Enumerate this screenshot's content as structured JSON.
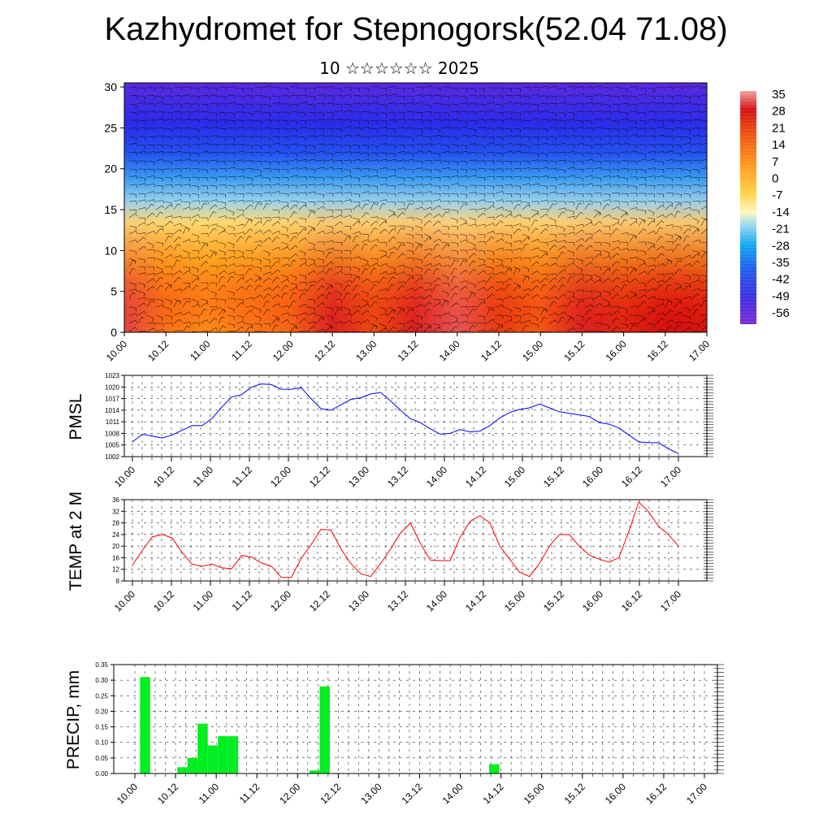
{
  "title": "Kazhydromet for Stepnogorsk(52.04 71.08)",
  "subtitle": "10 ☆☆☆☆☆☆ 2025",
  "colors": {
    "pmsl_line": "#0000ff",
    "temp_line": "#ff0000",
    "precip_bar": "#00ee22",
    "barb": "#000000"
  },
  "chart_data": [
    {
      "id": "cross_section",
      "type": "heatmap",
      "title": "",
      "xlabel": "",
      "ylabel": "",
      "x_ticklabels": [
        "10.00",
        "10.12",
        "11.00",
        "11.12",
        "12.00",
        "12.12",
        "13.00",
        "13.12",
        "14.00",
        "14.12",
        "15.00",
        "15.12",
        "16.00",
        "16.12",
        "17.00"
      ],
      "y_ticks": [
        0,
        5,
        10,
        15,
        20,
        25,
        30
      ],
      "ylim": [
        0,
        30.5
      ],
      "colorbar_labels": [
        "35",
        "28",
        "21",
        "14",
        "7",
        "0",
        "-7",
        "-14",
        "-21",
        "-28",
        "-35",
        "-42",
        "-49",
        "-56"
      ],
      "colorbar_range": [
        -60,
        38
      ],
      "surface_temp_by_x_tick": [
        33,
        16,
        12,
        15,
        18,
        31,
        22,
        31,
        34,
        24,
        20,
        31,
        27,
        30,
        29
      ],
      "overlay": "wind barbs"
    },
    {
      "id": "pmsl",
      "type": "line",
      "ylabel": "PMSL",
      "ylim": [
        1002,
        1023
      ],
      "y_ticks": [
        1002,
        1005,
        1008,
        1011,
        1014,
        1017,
        1020,
        1023
      ],
      "x_ticklabels": [
        "10.00",
        "10.12",
        "11.00",
        "11.12",
        "12.00",
        "12.12",
        "13.00",
        "13.12",
        "14.00",
        "14.12",
        "15.00",
        "15.12",
        "16.00",
        "16.12",
        "17.00"
      ],
      "x": [
        0,
        3,
        6,
        9,
        12,
        15,
        18,
        21,
        24,
        27,
        30,
        33,
        36,
        39,
        42,
        45,
        48,
        51,
        54,
        57,
        60,
        63,
        66,
        69,
        72,
        75,
        78,
        81,
        84,
        87,
        90,
        93,
        96,
        99,
        102,
        105,
        108,
        111,
        114,
        117,
        120,
        123,
        126,
        129,
        132,
        135,
        138,
        141,
        144,
        147,
        150,
        153,
        156,
        159,
        162,
        165
      ],
      "values": [
        1005.8,
        1007.8,
        1007.3,
        1006.8,
        1007.6,
        1008.8,
        1010.0,
        1010.0,
        1011.8,
        1014.8,
        1017.4,
        1018.0,
        1020.0,
        1020.8,
        1020.6,
        1019.4,
        1019.4,
        1019.8,
        1017.0,
        1014.4,
        1014.0,
        1015.4,
        1016.8,
        1017.2,
        1018.2,
        1018.6,
        1016.4,
        1014.0,
        1011.8,
        1010.8,
        1009.2,
        1007.8,
        1008.0,
        1009.0,
        1008.4,
        1008.6,
        1010.0,
        1012.0,
        1013.4,
        1014.2,
        1014.6,
        1015.6,
        1014.6,
        1013.6,
        1013.2,
        1012.8,
        1012.4,
        1010.8,
        1010.4,
        1009.4,
        1007.6,
        1005.8,
        1005.6,
        1005.6,
        1004.0,
        1002.8
      ]
    },
    {
      "id": "temp2m",
      "type": "line",
      "ylabel": "TEMP at 2 M",
      "ylim": [
        8,
        36
      ],
      "y_ticks": [
        8,
        12,
        16,
        20,
        24,
        28,
        32,
        36
      ],
      "x_ticklabels": [
        "10.00",
        "10.12",
        "11.00",
        "11.12",
        "12.00",
        "12.12",
        "13.00",
        "13.12",
        "14.00",
        "14.12",
        "15.00",
        "15.12",
        "16.00",
        "16.12",
        "17.00"
      ],
      "x": [
        0,
        3,
        6,
        9,
        12,
        15,
        18,
        21,
        24,
        27,
        30,
        33,
        36,
        39,
        42,
        45,
        48,
        51,
        54,
        57,
        60,
        63,
        66,
        69,
        72,
        75,
        78,
        81,
        84,
        87,
        90,
        93,
        96,
        99,
        102,
        105,
        108,
        111,
        114,
        117,
        120,
        123,
        126,
        129,
        132,
        135,
        138,
        141,
        144,
        147,
        150,
        153,
        156,
        159,
        162,
        165
      ],
      "values": [
        13.5,
        18.5,
        23.2,
        24.0,
        22.8,
        17.8,
        13.8,
        13.0,
        13.8,
        12.5,
        12.2,
        16.8,
        16.2,
        14.2,
        13.0,
        9.2,
        9.2,
        15.8,
        20.5,
        25.8,
        25.5,
        19.0,
        14.0,
        10.5,
        9.5,
        14.0,
        19.0,
        24.5,
        28.0,
        21.0,
        15.2,
        15.0,
        15.0,
        23.0,
        28.5,
        30.5,
        28.0,
        20.0,
        15.5,
        11.0,
        9.5,
        14.0,
        20.0,
        24.0,
        24.0,
        20.0,
        17.0,
        15.5,
        14.5,
        16.0,
        25.0,
        35.2,
        31.8,
        26.8,
        24.0,
        20.0
      ]
    },
    {
      "id": "precip",
      "type": "bar",
      "ylabel": "PRECIP, mm",
      "ylim": [
        0,
        0.35
      ],
      "y_ticklabels": [
        "0.00",
        "0.05",
        "0.10",
        "0.15",
        "0.20",
        "0.25",
        "0.30",
        "0.35"
      ],
      "x_ticklabels": [
        "10.00",
        "10.12",
        "11.00",
        "11.12",
        "12.00",
        "12.12",
        "13.00",
        "13.12",
        "14.00",
        "14.12",
        "15.00",
        "15.12",
        "16.00",
        "16.12",
        "17.00"
      ],
      "x": [
        3,
        14,
        17,
        20,
        23,
        26,
        29,
        53,
        56,
        106
      ],
      "values": [
        0.31,
        0.02,
        0.05,
        0.16,
        0.09,
        0.12,
        0.12,
        0.01,
        0.28,
        0.03
      ]
    }
  ]
}
